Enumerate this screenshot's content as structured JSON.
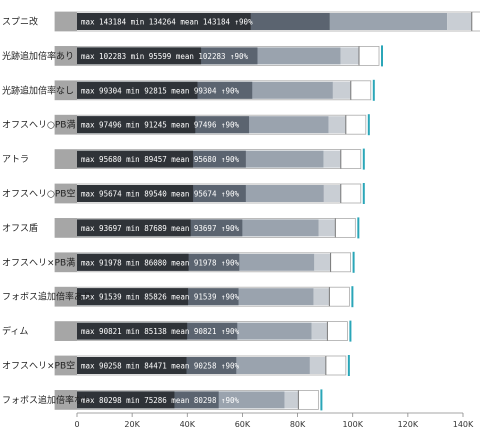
{
  "chart_data": {
    "type": "bar",
    "categories": [
      "スプニ改",
      "光跡追加倍率あり",
      "光跡追加倍率なし",
      "オフスへリ○PB満",
      "アトラ",
      "オフスへリ○PB空",
      "オフス盾",
      "オフスへリ×PB満",
      "フォボス追加倍率あり",
      "ディム",
      "オフスへリ×PB空",
      "フォボス追加倍率なし"
    ],
    "series": [
      {
        "name": "max",
        "values": [
          143184,
          102283,
          99304,
          97496,
          95680,
          95674,
          93697,
          91978,
          91539,
          90821,
          90258,
          80298
        ]
      },
      {
        "name": "min",
        "values": [
          134264,
          95599,
          92815,
          91245,
          89457,
          89540,
          87689,
          86080,
          85826,
          85138,
          84471,
          75286
        ]
      },
      {
        "name": "mean",
        "values": [
          143184,
          102283,
          99304,
          97496,
          95680,
          95674,
          93697,
          91978,
          91539,
          90821,
          90258,
          80298
        ]
      }
    ],
    "row_texts": [
      "max 143184 min 134264 mean 143184 ↑90%",
      "max 102283 min 95599 mean 102283 ↑90%",
      "max 99304 min 92815 mean 99304 ↑90%",
      "max 97496 min 91245 mean 97496 ↑90%",
      "max 95680 min 89457 mean 95680 ↑90%",
      "max 95674 min 89540 mean 95674 ↑90%",
      "max 93697 min 87689 mean 93697 ↑90%",
      "max 91978 min 86080 mean 91978 ↑90%",
      "max 91539 min 85826 mean 91539 ↑90%",
      "max 90821 min 85138 mean 90821 ↑90%",
      "max 90258 min 84471 mean 90258 ↑90%",
      "max 80298 min 75286 mean 80298 ↑90%"
    ],
    "xlim": [
      0,
      140000
    ],
    "x_ticks": [
      0,
      20000,
      40000,
      60000,
      80000,
      100000,
      120000,
      140000
    ],
    "x_tick_labels": [
      "0",
      "20K",
      "40K",
      "60K",
      "80K",
      "100K",
      "120K",
      "140K"
    ],
    "title": "",
    "xlabel": "",
    "ylabel": "",
    "grid": false,
    "colors": {
      "label_box": "#a6a6a6",
      "dark": "#2f3338",
      "mid": "#5b6470",
      "light": "#9aa3ae",
      "max_marker": "#2aa6b8",
      "outline": "#aaaaaa",
      "axis": "#888888"
    }
  }
}
